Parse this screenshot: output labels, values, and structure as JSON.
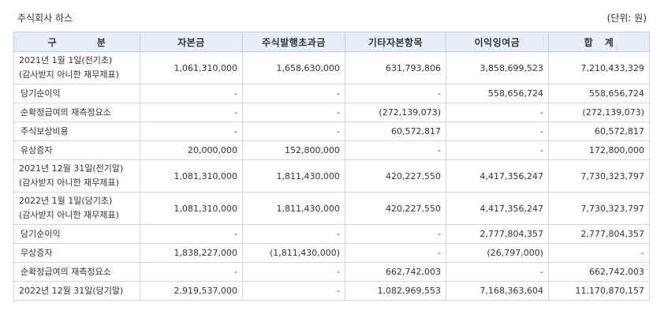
{
  "header": {
    "company": "주식회사 하스",
    "unit": "(단위: 원)"
  },
  "table": {
    "columns": [
      "구      분",
      "자본금",
      "주식발행초과금",
      "기타자본항목",
      "이익잉여금",
      "합   계"
    ],
    "rows": [
      {
        "label": [
          "2021년 1월 1일(전기초)",
          "(감사받지 아니한 재무제표)"
        ],
        "cells": [
          "1,061,310,000",
          "1,658,630,000",
          "631,793,806",
          "3,858,699,523",
          "7,210,433,329"
        ]
      },
      {
        "label": [
          "당기순이익"
        ],
        "cells": [
          "-",
          "-",
          "-",
          "558,656,724",
          "558,656,724"
        ]
      },
      {
        "label": [
          "순확정급여의 재측정요소"
        ],
        "cells": [
          "-",
          "-",
          "(272,139,073)",
          "-",
          "(272,139,073)"
        ]
      },
      {
        "label": [
          "주식보상비용"
        ],
        "cells": [
          "-",
          "-",
          "60,572,817",
          "-",
          "60,572,817"
        ]
      },
      {
        "label": [
          "유상증자"
        ],
        "cells": [
          "20,000,000",
          "152,800,000",
          "-",
          "-",
          "172,800,000"
        ]
      },
      {
        "label": [
          "2021년 12월 31일(전기말)",
          "(감사받지 아니한 재무제표)"
        ],
        "cells": [
          "1,081,310,000",
          "1,811,430,000",
          "420,227,550",
          "4,417,356,247",
          "7,730,323,797"
        ]
      },
      {
        "label": [
          "2022년 1월 1일(당기초)",
          "(감사받지 아니한 재무제표)"
        ],
        "cells": [
          "1,081,310,000",
          "1,811,430,000",
          "420,227,550",
          "4,417,356,247",
          "7,730,323,797"
        ]
      },
      {
        "label": [
          "당기순이익"
        ],
        "cells": [
          "-",
          "-",
          "-",
          "2,777,804,357",
          "2,777,804,357"
        ]
      },
      {
        "label": [
          "무상증자"
        ],
        "cells": [
          "1,838,227,000",
          "(1,811,430,000)",
          "-",
          "(26,797,000)",
          "-"
        ]
      },
      {
        "label": [
          "순확정급여의 재측정요소"
        ],
        "cells": [
          "-",
          "-",
          "662,742,003",
          "-",
          "662,742,003"
        ]
      },
      {
        "label": [
          "2022년 12월 31일(당기말)"
        ],
        "cells": [
          "2,919,537,000",
          "-",
          "1,082,969,553",
          "7,168,363,604",
          "11,170,870,157"
        ]
      }
    ]
  }
}
